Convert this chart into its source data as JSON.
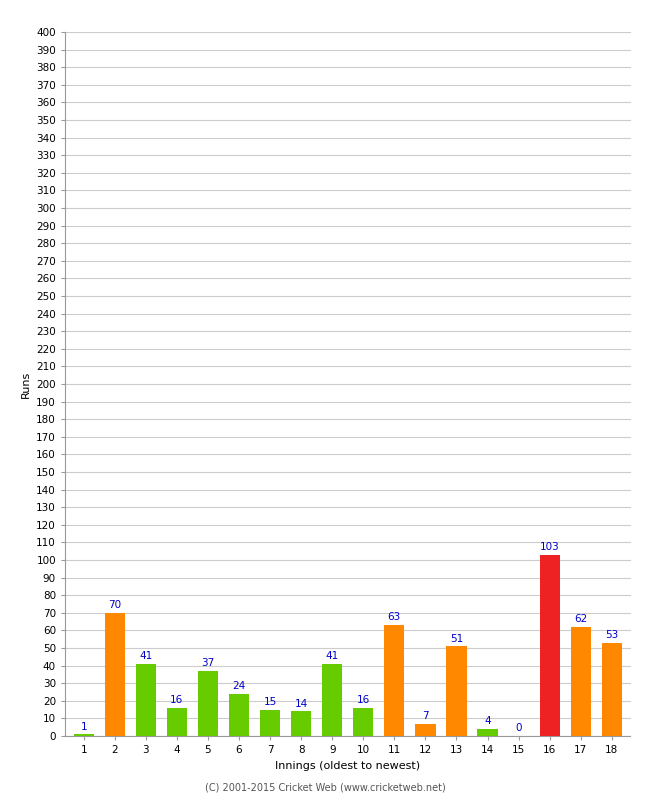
{
  "innings": [
    1,
    2,
    3,
    4,
    5,
    6,
    7,
    8,
    9,
    10,
    11,
    12,
    13,
    14,
    15,
    16,
    17,
    18
  ],
  "values": [
    1,
    70,
    41,
    16,
    37,
    24,
    15,
    14,
    41,
    16,
    63,
    7,
    51,
    4,
    0,
    103,
    62,
    53
  ],
  "bar_colors": [
    "#66cc00",
    "#ff8800",
    "#66cc00",
    "#66cc00",
    "#66cc00",
    "#66cc00",
    "#66cc00",
    "#66cc00",
    "#66cc00",
    "#66cc00",
    "#ff8800",
    "#ff8800",
    "#ff8800",
    "#66cc00",
    "#66cc00",
    "#ee2222",
    "#ff8800",
    "#ff8800"
  ],
  "xlabel": "Innings (oldest to newest)",
  "ylabel": "Runs",
  "ylim": [
    0,
    400
  ],
  "ytick_step": 10,
  "footer": "(C) 2001-2015 Cricket Web (www.cricketweb.net)",
  "label_color": "#0000cc",
  "background_color": "#ffffff",
  "grid_color": "#cccccc",
  "label_fontsize": 7.5,
  "axis_label_fontsize": 8,
  "tick_fontsize": 7.5
}
